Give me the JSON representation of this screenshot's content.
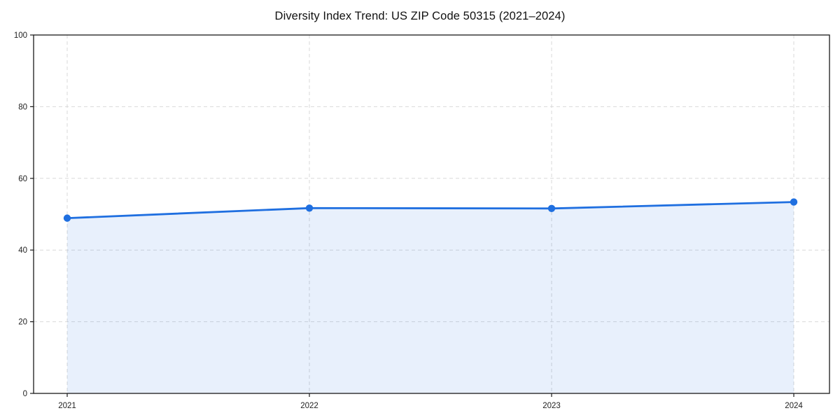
{
  "page": {
    "background": "#ffffff"
  },
  "chart_data": {
    "type": "line",
    "title": "Diversity Index Trend: US ZIP Code 50315 (2021–2024)",
    "categories": [
      "2021",
      "2022",
      "2023",
      "2024"
    ],
    "series": [
      {
        "name": "Diversity Index",
        "values": [
          48.9,
          51.7,
          51.6,
          53.4
        ]
      }
    ],
    "xlabel": "",
    "ylabel": "",
    "ylim": [
      0,
      100
    ],
    "yticks": [
      0,
      20,
      40,
      60,
      80,
      100
    ],
    "grid": true,
    "grid_style": "dashed",
    "legend_position": "none",
    "area_fill": true,
    "marker": "circle",
    "colors": {
      "line": "#1f6fe0",
      "marker": "#1f6fe0",
      "area": "#1f6fe0",
      "area_opacity": 0.1,
      "grid": "#d9d9d9",
      "spine": "#1a1a1a",
      "tick_label": "#222222",
      "background": "#ffffff"
    }
  }
}
